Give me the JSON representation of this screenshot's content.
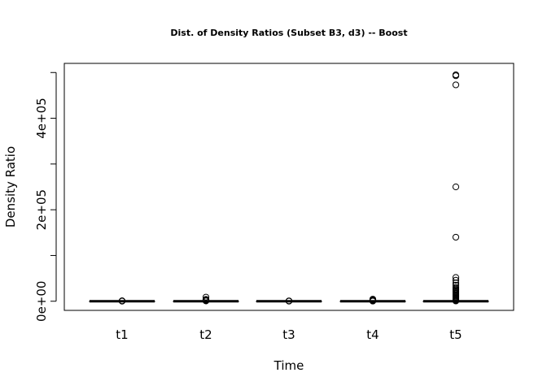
{
  "chart_data": {
    "type": "box",
    "title": "Dist. of Density Ratios (Subset B3, d3) -- Boost",
    "xlabel": "Time",
    "ylabel": "Density Ratio",
    "categories": [
      "t1",
      "t2",
      "t3",
      "t4",
      "t5"
    ],
    "y_ticks": [
      0,
      200000,
      400000
    ],
    "y_tick_labels": [
      "0e+00",
      "2e+05",
      "4e+05"
    ],
    "y_minor_ticks": [
      0,
      100000,
      200000,
      300000,
      400000,
      500000
    ],
    "ylim": [
      -20000,
      520000
    ],
    "grid": false,
    "boxes": [
      {
        "label": "t1",
        "median": 0,
        "q1": 0,
        "q3": 0,
        "whisker_low": 0,
        "whisker_high": 0,
        "outliers": [
          200,
          400,
          600,
          900
        ]
      },
      {
        "label": "t2",
        "median": 0,
        "q1": 0,
        "q3": 0,
        "whisker_low": 0,
        "whisker_high": 0,
        "outliers": [
          600,
          1200,
          2000,
          3000,
          4000,
          9000
        ]
      },
      {
        "label": "t3",
        "median": 0,
        "q1": 0,
        "q3": 0,
        "whisker_low": 0,
        "whisker_high": 0,
        "outliers": [
          200,
          500,
          800
        ]
      },
      {
        "label": "t4",
        "median": 0,
        "q1": 0,
        "q3": 0,
        "whisker_low": 0,
        "whisker_high": 0,
        "outliers": [
          300,
          800,
          1500,
          2500,
          3500,
          4500
        ]
      },
      {
        "label": "t5",
        "median": 0,
        "q1": 0,
        "q3": 0,
        "whisker_low": 0,
        "whisker_high": 0,
        "outliers": [
          500,
          1500,
          3000,
          5000,
          7000,
          9000,
          11000,
          13000,
          15000,
          17000,
          19000,
          21000,
          23000,
          25000,
          27000,
          30000,
          35000,
          40000,
          46000,
          52000,
          140000,
          250000,
          473000,
          493000,
          495000
        ]
      }
    ]
  }
}
